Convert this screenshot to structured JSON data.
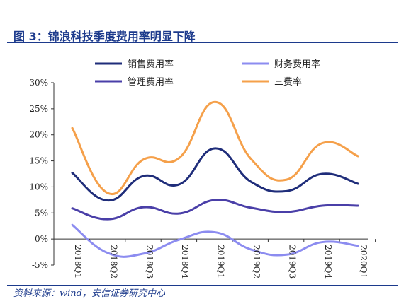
{
  "figure": {
    "title": "图 3：锦浪科技季度费用率明显下降",
    "source": "资料来源：wind，安信证券研究中心"
  },
  "chart_data": {
    "type": "line",
    "categories": [
      "2018Q1",
      "2018Q2",
      "2018Q3",
      "2018Q4",
      "2019Q1",
      "2019Q2",
      "2019Q3",
      "2019Q4",
      "2020Q1"
    ],
    "ylim": [
      -5,
      30
    ],
    "yticks": [
      -5,
      0,
      5,
      10,
      15,
      20,
      25,
      30
    ],
    "ytick_labels": [
      "-5%",
      "0%",
      "5%",
      "10%",
      "15%",
      "20%",
      "25%",
      "30%"
    ],
    "grid": false,
    "legend_position": "top",
    "series": [
      {
        "name": "销售费用率",
        "color": "#1f2d7a",
        "values": [
          12.7,
          7.4,
          12.1,
          10.5,
          17.4,
          11.0,
          9.2,
          12.5,
          10.6
        ]
      },
      {
        "name": "财务费用率",
        "color": "#8c8cf0",
        "values": [
          2.7,
          -2.7,
          -2.8,
          -0.1,
          1.3,
          -2.0,
          -3.0,
          -0.6,
          -1.3
        ]
      },
      {
        "name": "管理费用率",
        "color": "#4a3fa8",
        "values": [
          5.9,
          3.8,
          6.1,
          4.9,
          7.5,
          6.0,
          5.2,
          6.4,
          6.4
        ]
      },
      {
        "name": "三费率",
        "color": "#f5a04a",
        "values": [
          21.3,
          8.8,
          15.3,
          15.6,
          26.3,
          15.4,
          11.4,
          18.4,
          15.9
        ]
      }
    ]
  }
}
